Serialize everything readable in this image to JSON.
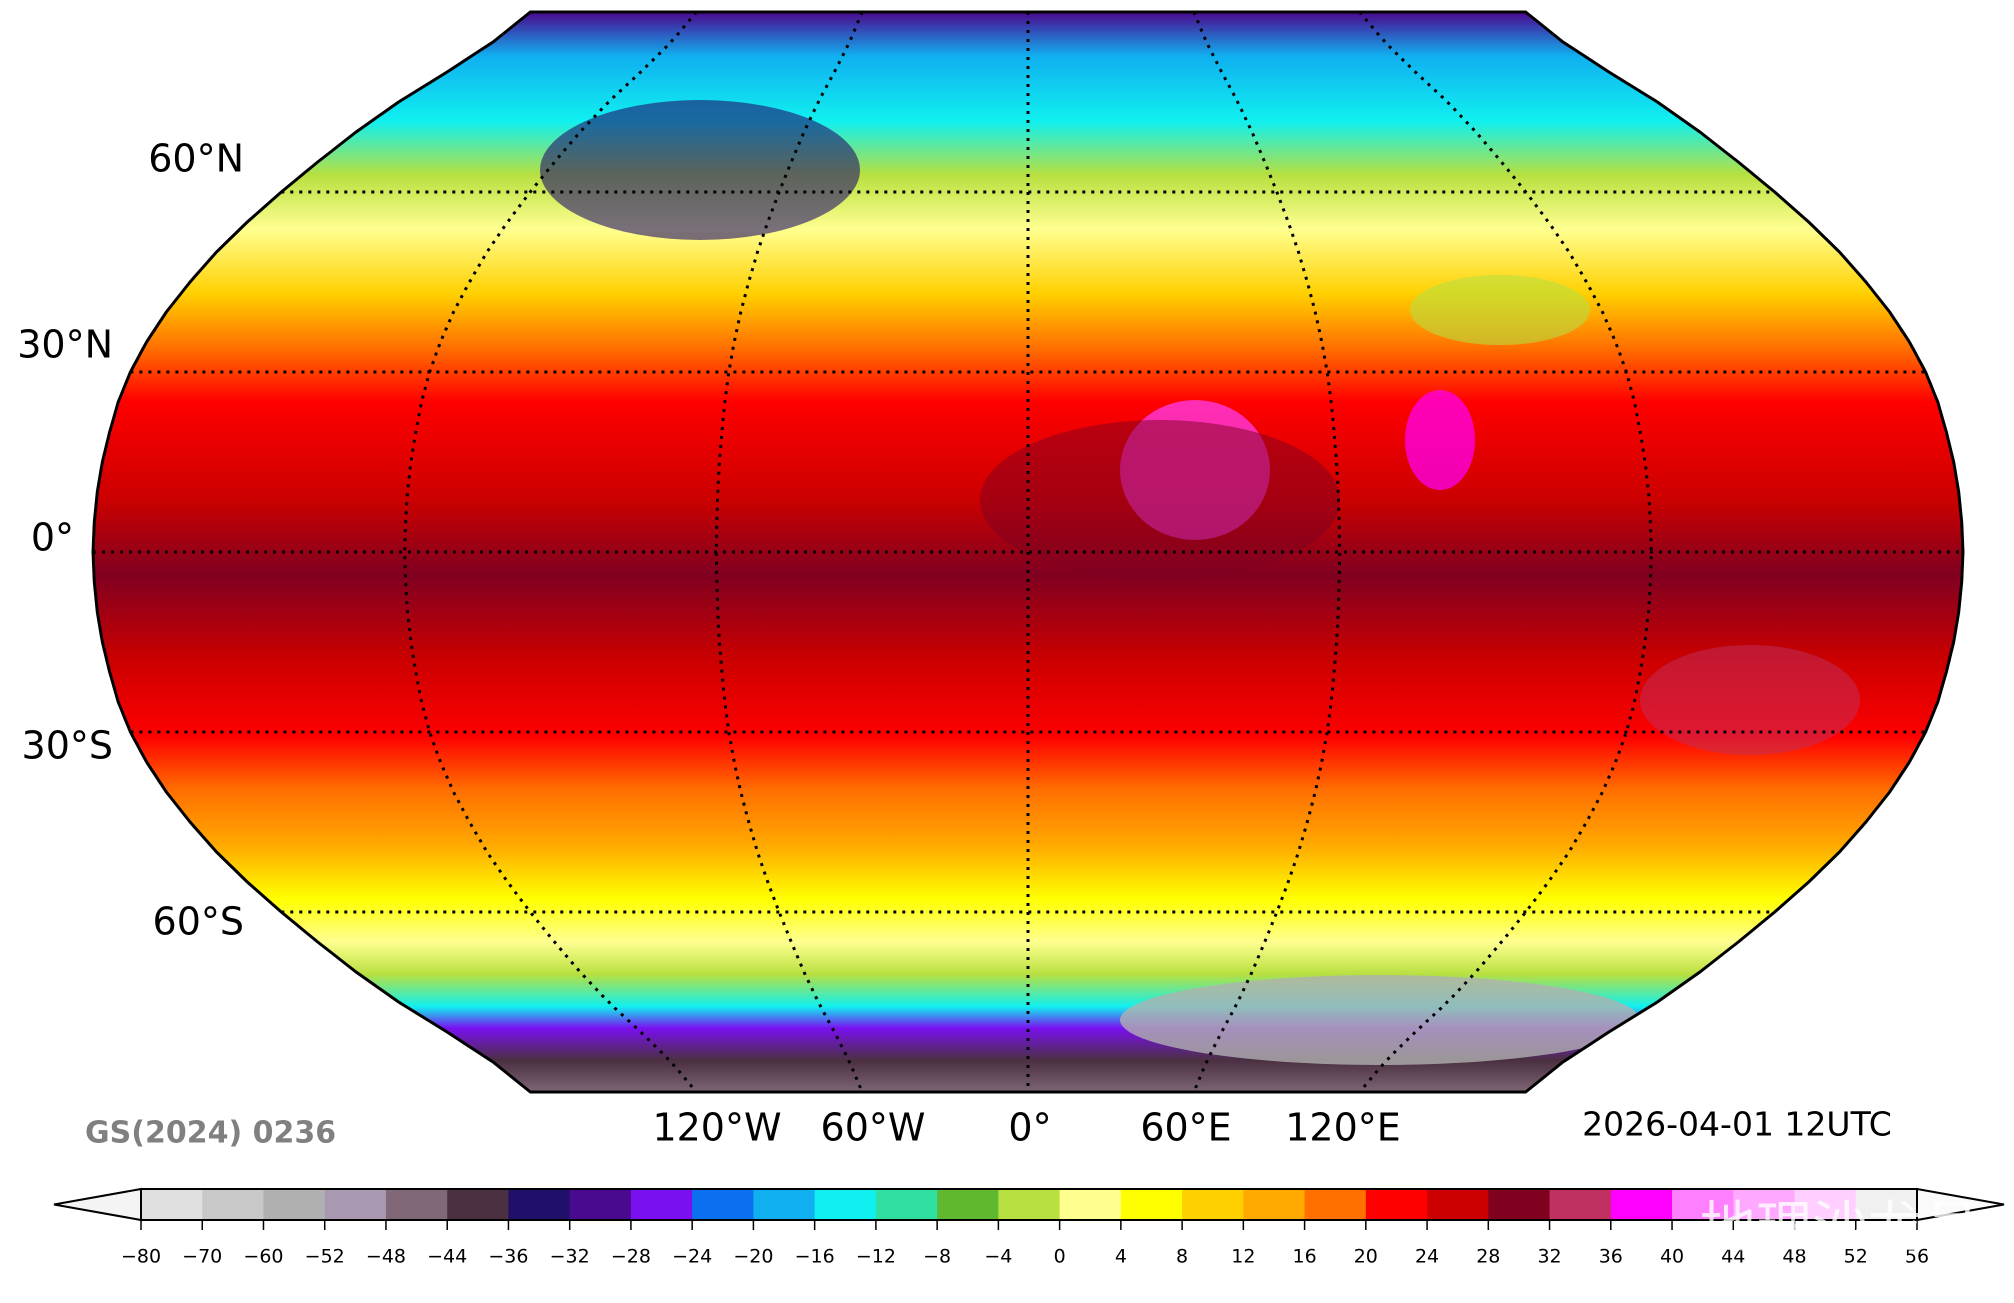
{
  "map": {
    "lat_labels": [
      "60°N",
      "30°N",
      "0°",
      "30°S",
      "60°S"
    ],
    "lon_labels": [
      "120°W",
      "60°W",
      "0°",
      "60°E",
      "120°E"
    ],
    "source": "GS(2024) 0236",
    "time": "2026-04-01 12UTC",
    "watermark": "地理沙龙号"
  },
  "colorbar": {
    "ticks": [
      "−80",
      "−70",
      "−60",
      "−52",
      "−48",
      "−44",
      "−36",
      "−32",
      "−28",
      "−24",
      "−20",
      "−16",
      "−12",
      "−8",
      "−4",
      "0",
      "4",
      "8",
      "12",
      "16",
      "20",
      "24",
      "28",
      "32",
      "36",
      "40",
      "44",
      "48",
      "52",
      "56"
    ],
    "colors": [
      "#e0e0e0",
      "#c8c8c8",
      "#b0b0b0",
      "#a898b0",
      "#806878",
      "#4a3040",
      "#20106a",
      "#4a0a90",
      "#7a10f0",
      "#0a70f0",
      "#10b0f0",
      "#10f0f0",
      "#30e0a0",
      "#60b830",
      "#b8e040",
      "#ffff90",
      "#ffff00",
      "#ffd000",
      "#ffa800",
      "#ff7000",
      "#ff0000",
      "#cc0000",
      "#800020",
      "#c03060",
      "#ff00ff",
      "#ff80ff",
      "#ffa8ff",
      "#ffd0ff",
      "#f0f0f0"
    ]
  }
}
